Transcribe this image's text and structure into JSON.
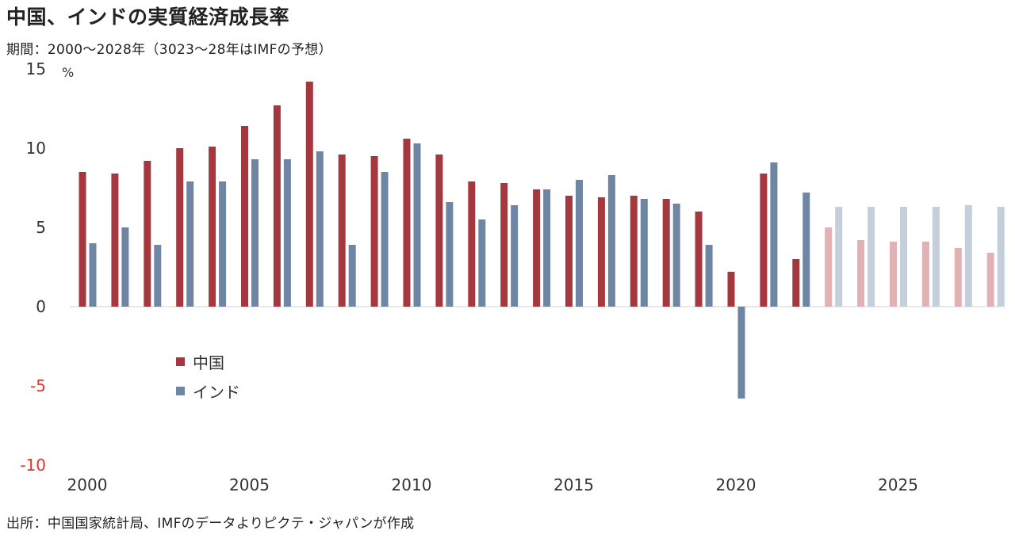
{
  "chart_data": {
    "type": "bar",
    "title": "中国、インドの実質経済成長率",
    "subtitle": "期間：2000～2028年（3023～28年はIMFの予想）",
    "source": "出所：中国国家統計局、IMFのデータよりピクテ・ジャパンが作成",
    "ylabel": "%",
    "ylim": [
      -10,
      15
    ],
    "yticks": [
      15,
      10,
      5,
      0,
      -5,
      -10
    ],
    "negative_tick_color": "#e0352b",
    "xticks": [
      "2000",
      "2005",
      "2010",
      "2015",
      "2020",
      "2025"
    ],
    "categories": [
      "2000",
      "2001",
      "2002",
      "2003",
      "2004",
      "2005",
      "2006",
      "2007",
      "2008",
      "2009",
      "2010",
      "2011",
      "2012",
      "2013",
      "2014",
      "2015",
      "2016",
      "2017",
      "2018",
      "2019",
      "2020",
      "2021",
      "2022",
      "2023",
      "2024",
      "2025",
      "2026",
      "2027",
      "2028"
    ],
    "forecast_from": "2023",
    "legend_position": "left-middle",
    "grid": false,
    "series": [
      {
        "name": "中国",
        "color": "#a5383f",
        "forecast_color": "#e2b1b4",
        "values": [
          8.5,
          8.4,
          9.2,
          10.0,
          10.1,
          11.4,
          12.7,
          14.2,
          9.6,
          9.5,
          10.6,
          9.6,
          7.9,
          7.8,
          7.4,
          7.0,
          6.9,
          7.0,
          6.8,
          6.0,
          2.2,
          8.4,
          3.0,
          5.0,
          4.2,
          4.1,
          4.1,
          3.7,
          3.4
        ]
      },
      {
        "name": "インド",
        "color": "#6e86a3",
        "forecast_color": "#c5cfdb",
        "values": [
          4.0,
          5.0,
          3.9,
          7.9,
          7.9,
          9.3,
          9.3,
          9.8,
          3.9,
          8.5,
          10.3,
          6.6,
          5.5,
          6.4,
          7.4,
          8.0,
          8.3,
          6.8,
          6.5,
          3.9,
          -5.8,
          9.1,
          7.2,
          6.3,
          6.3,
          6.3,
          6.3,
          6.4,
          6.3
        ]
      }
    ]
  }
}
